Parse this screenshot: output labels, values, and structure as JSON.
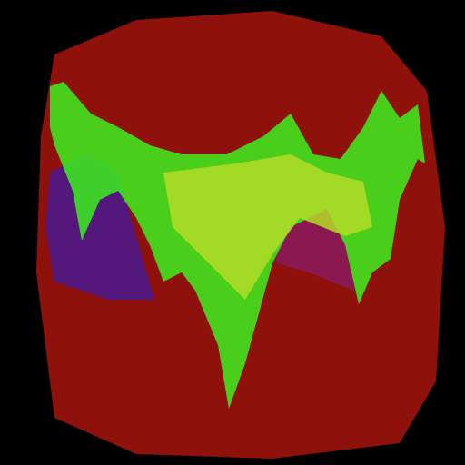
{
  "chart_data": {
    "type": "polygon",
    "xlim": [
      0,
      512
    ],
    "ylim": [
      512,
      0
    ],
    "tick_labels": false,
    "grid": false,
    "series": [
      {
        "color": "#a8140e",
        "points": [
          [
            60,
            60
          ],
          [
            150,
            22
          ],
          [
            300,
            12
          ],
          [
            420,
            40
          ],
          [
            470,
            100
          ],
          [
            490,
            250
          ],
          [
            480,
            420
          ],
          [
            440,
            488
          ],
          [
            300,
            505
          ],
          [
            150,
            500
          ],
          [
            60,
            460
          ],
          [
            40,
            300
          ],
          [
            45,
            150
          ]
        ]
      },
      {
        "color": "#4a1a90",
        "points": [
          [
            55,
            190
          ],
          [
            95,
            170
          ],
          [
            130,
            190
          ],
          [
            150,
            260
          ],
          [
            170,
            330
          ],
          [
            120,
            330
          ],
          [
            60,
            310
          ],
          [
            50,
            250
          ]
        ]
      },
      {
        "color": "#8a1a5e",
        "points": [
          [
            300,
            250
          ],
          [
            330,
            235
          ],
          [
            360,
            230
          ],
          [
            385,
            270
          ],
          [
            390,
            320
          ],
          [
            340,
            300
          ],
          [
            305,
            290
          ]
        ]
      },
      {
        "color": "#3cf01e",
        "points": [
          [
            55,
            95
          ],
          [
            70,
            90
          ],
          [
            100,
            125
          ],
          [
            130,
            140
          ],
          [
            165,
            160
          ],
          [
            200,
            170
          ],
          [
            250,
            170
          ],
          [
            290,
            150
          ],
          [
            320,
            125
          ],
          [
            345,
            170
          ],
          [
            375,
            175
          ],
          [
            400,
            140
          ],
          [
            420,
            100
          ],
          [
            440,
            130
          ],
          [
            460,
            115
          ],
          [
            468,
            180
          ],
          [
            460,
            175
          ],
          [
            440,
            220
          ],
          [
            430,
            285
          ],
          [
            410,
            300
          ],
          [
            395,
            335
          ],
          [
            380,
            270
          ],
          [
            360,
            230
          ],
          [
            340,
            240
          ],
          [
            320,
            250
          ],
          [
            300,
            290
          ],
          [
            270,
            400
          ],
          [
            252,
            450
          ],
          [
            240,
            380
          ],
          [
            215,
            320
          ],
          [
            200,
            300
          ],
          [
            180,
            310
          ],
          [
            165,
            270
          ],
          [
            150,
            240
          ],
          [
            130,
            210
          ],
          [
            110,
            220
          ],
          [
            90,
            265
          ],
          [
            80,
            210
          ],
          [
            60,
            160
          ],
          [
            55,
            140
          ]
        ]
      },
      {
        "color": "#b4dc28",
        "points": [
          [
            180,
            190
          ],
          [
            260,
            180
          ],
          [
            320,
            170
          ],
          [
            360,
            190
          ],
          [
            400,
            200
          ],
          [
            410,
            250
          ],
          [
            380,
            260
          ],
          [
            330,
            240
          ],
          [
            300,
            280
          ],
          [
            270,
            330
          ],
          [
            230,
            290
          ],
          [
            190,
            250
          ]
        ]
      }
    ]
  }
}
